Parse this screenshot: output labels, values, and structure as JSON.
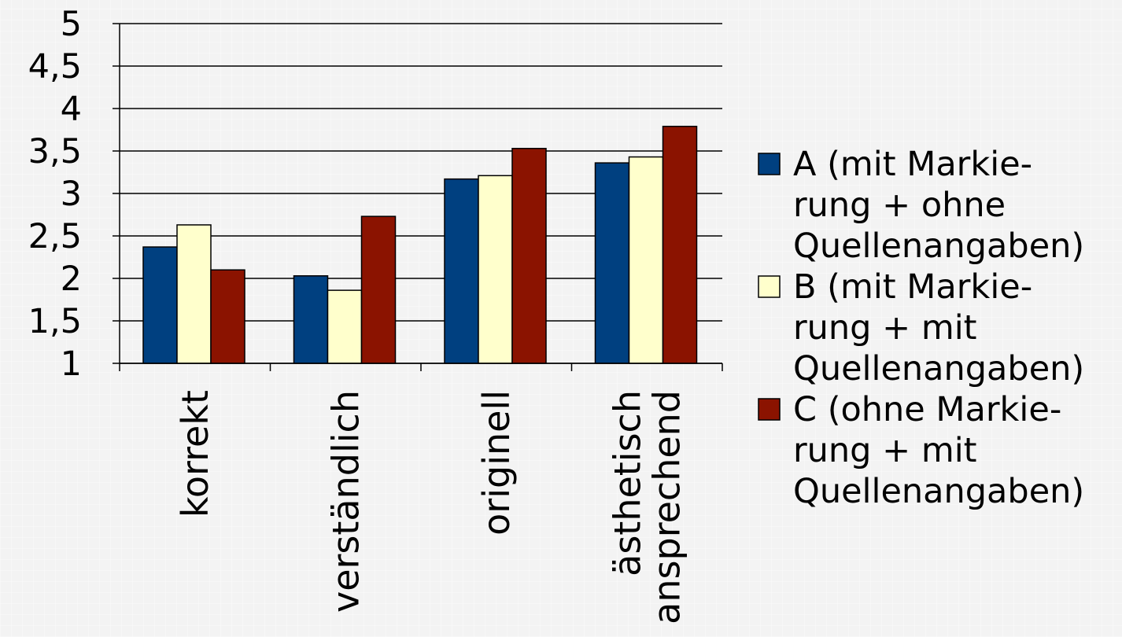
{
  "chart_data": {
    "type": "bar",
    "categories": [
      [
        "korrekt"
      ],
      [
        "verständlich"
      ],
      [
        "originell"
      ],
      [
        "ästhetisch",
        "ansprechend"
      ]
    ],
    "series": [
      {
        "name": "A (mit Markierung + ohne Quellenangaben)",
        "legend_lines": [
          "A (mit Markie-",
          "rung + ohne",
          "Quellenangaben)"
        ],
        "color": "#004080",
        "values": [
          2.37,
          2.03,
          3.17,
          3.36
        ]
      },
      {
        "name": "B (mit Markierung + mit Quellenangaben)",
        "legend_lines": [
          "B (mit Markie-",
          "rung + mit",
          "Quellenangaben)"
        ],
        "color": "#ffffcc",
        "values": [
          2.63,
          1.86,
          3.21,
          3.43
        ]
      },
      {
        "name": "C (ohne Markierung + mit Quellenangaben)",
        "legend_lines": [
          "C (ohne Markie-",
          "rung + mit",
          "Quellenangaben)"
        ],
        "color": "#8b1300",
        "values": [
          2.1,
          2.73,
          3.53,
          3.79
        ]
      }
    ],
    "ylim": [
      1,
      5
    ],
    "yticks": [
      "1",
      "1,5",
      "2",
      "2,5",
      "3",
      "3,5",
      "4",
      "4,5",
      "5"
    ],
    "ytick_values": [
      1,
      1.5,
      2,
      2.5,
      3,
      3.5,
      4,
      4.5,
      5
    ],
    "grid": true,
    "legend": "right",
    "title": "",
    "xlabel": "",
    "ylabel": ""
  }
}
